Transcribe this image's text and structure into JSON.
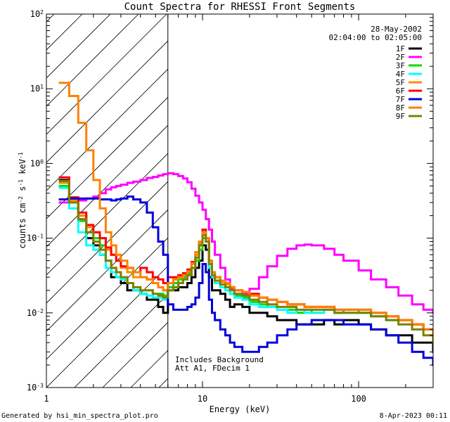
{
  "chart_data": {
    "type": "line",
    "title": "Count Spectra for RHESSI Front Segments",
    "xlabel": "Energy (keV)",
    "ylabel": "counts cm",
    "ylabel_sup1": "-2",
    "ylabel_mid": " s",
    "ylabel_sup2": "-1",
    "ylabel_mid2": " keV",
    "ylabel_sup3": "-1",
    "x_scale": "log",
    "y_scale": "log",
    "xlim": [
      1,
      300
    ],
    "ylim": [
      0.001,
      100
    ],
    "x_ticks": [
      {
        "value": 1,
        "label": "1"
      },
      {
        "value": 10,
        "label": "10"
      },
      {
        "value": 100,
        "label": "100"
      }
    ],
    "y_ticks": [
      {
        "value": 0.001,
        "base": "10",
        "exp": "-3"
      },
      {
        "value": 0.01,
        "base": "10",
        "exp": "-2"
      },
      {
        "value": 0.1,
        "base": "10",
        "exp": "-1"
      },
      {
        "value": 1,
        "base": "10",
        "exp": "0"
      },
      {
        "value": 10,
        "base": "10",
        "exp": "1"
      },
      {
        "value": 100,
        "base": "10",
        "exp": "2"
      }
    ],
    "hatched_region": {
      "x_from": 1,
      "x_to": 6
    },
    "annotations": {
      "date": "28-May-2002",
      "time_range": "02:04:00 to 02:05:00",
      "note1": "Includes Background",
      "note2": "Att A1, FDecim 1"
    },
    "legend_position": "top-right",
    "series": [
      {
        "name": "1F",
        "color": "#000000",
        "x": [
          1.2,
          1.4,
          1.6,
          1.8,
          2,
          2.2,
          2.4,
          2.6,
          2.8,
          3,
          3.3,
          3.6,
          4,
          4.4,
          4.8,
          5.2,
          5.6,
          6,
          6.5,
          7,
          7.5,
          8,
          8.5,
          9,
          9.5,
          10,
          10.5,
          11,
          11.5,
          12,
          13,
          14,
          15,
          16,
          18,
          20,
          23,
          26,
          30,
          35,
          40,
          45,
          50,
          60,
          70,
          80,
          100,
          120,
          150,
          180,
          220,
          260,
          300
        ],
        "y": [
          0.6,
          0.35,
          0.2,
          0.1,
          0.08,
          0.06,
          0.05,
          0.03,
          0.03,
          0.025,
          0.02,
          0.02,
          0.018,
          0.015,
          0.015,
          0.012,
          0.01,
          0.02,
          0.02,
          0.022,
          0.022,
          0.025,
          0.03,
          0.04,
          0.05,
          0.08,
          0.07,
          0.03,
          0.02,
          0.02,
          0.018,
          0.015,
          0.012,
          0.013,
          0.012,
          0.01,
          0.01,
          0.009,
          0.008,
          0.008,
          0.007,
          0.007,
          0.007,
          0.008,
          0.007,
          0.008,
          0.007,
          0.006,
          0.005,
          0.005,
          0.004,
          0.004,
          0.003
        ]
      },
      {
        "name": "2F",
        "color": "#ff00ff",
        "x": [
          1.2,
          1.4,
          1.6,
          1.8,
          2,
          2.2,
          2.4,
          2.6,
          2.8,
          3,
          3.3,
          3.6,
          4,
          4.4,
          4.8,
          5.2,
          5.6,
          6,
          6.5,
          7,
          7.5,
          8,
          8.5,
          9,
          9.5,
          10,
          10.5,
          11,
          11.5,
          12,
          13,
          14,
          15,
          16,
          18,
          20,
          23,
          26,
          30,
          35,
          40,
          45,
          50,
          60,
          70,
          80,
          100,
          120,
          150,
          180,
          220,
          260,
          300
        ],
        "y": [
          0.3,
          0.31,
          0.32,
          0.34,
          0.36,
          0.4,
          0.45,
          0.48,
          0.5,
          0.52,
          0.55,
          0.57,
          0.6,
          0.64,
          0.66,
          0.69,
          0.72,
          0.74,
          0.72,
          0.68,
          0.63,
          0.56,
          0.46,
          0.37,
          0.3,
          0.24,
          0.18,
          0.13,
          0.09,
          0.06,
          0.04,
          0.028,
          0.021,
          0.018,
          0.018,
          0.021,
          0.03,
          0.042,
          0.058,
          0.072,
          0.08,
          0.082,
          0.08,
          0.072,
          0.06,
          0.05,
          0.037,
          0.028,
          0.022,
          0.017,
          0.013,
          0.011,
          0.01
        ]
      },
      {
        "name": "3F",
        "color": "#00dd00",
        "x": [
          1.2,
          1.4,
          1.6,
          1.8,
          2,
          2.2,
          2.4,
          2.6,
          2.8,
          3,
          3.3,
          3.6,
          4,
          4.4,
          4.8,
          5.2,
          5.6,
          6,
          6.5,
          7,
          7.5,
          8,
          8.5,
          9,
          9.5,
          10,
          10.5,
          11,
          11.5,
          12,
          13,
          14,
          15,
          16,
          18,
          20,
          23,
          26,
          30,
          35,
          40,
          45,
          50,
          60,
          70,
          80,
          100,
          120,
          150,
          180,
          220,
          260,
          300
        ],
        "y": [
          0.5,
          0.3,
          0.17,
          0.12,
          0.1,
          0.08,
          0.05,
          0.04,
          0.035,
          0.03,
          0.025,
          0.022,
          0.02,
          0.02,
          0.018,
          0.018,
          0.017,
          0.022,
          0.025,
          0.028,
          0.03,
          0.034,
          0.04,
          0.05,
          0.07,
          0.1,
          0.09,
          0.04,
          0.03,
          0.025,
          0.022,
          0.02,
          0.018,
          0.017,
          0.016,
          0.014,
          0.013,
          0.012,
          0.011,
          0.011,
          0.01,
          0.011,
          0.01,
          0.011,
          0.01,
          0.011,
          0.01,
          0.009,
          0.008,
          0.008,
          0.007,
          0.006,
          0.005
        ]
      },
      {
        "name": "4F",
        "color": "#00ffff",
        "x": [
          1.2,
          1.4,
          1.6,
          1.8,
          2,
          2.2,
          2.4,
          2.6,
          2.8,
          3,
          3.3,
          3.6,
          4,
          4.4,
          4.8,
          5.2,
          5.6,
          6,
          6.5,
          7,
          7.5,
          8,
          8.5,
          9,
          9.5,
          10,
          10.5,
          11,
          11.5,
          12,
          13,
          14,
          15,
          16,
          18,
          20,
          23,
          26,
          30,
          35,
          40,
          45,
          50,
          60,
          70,
          80,
          100,
          120,
          150,
          180,
          220,
          260,
          300
        ],
        "y": [
          0.47,
          0.25,
          0.12,
          0.08,
          0.07,
          0.06,
          0.04,
          0.035,
          0.03,
          0.028,
          0.025,
          0.02,
          0.018,
          0.017,
          0.016,
          0.016,
          0.015,
          0.02,
          0.022,
          0.025,
          0.028,
          0.032,
          0.04,
          0.055,
          0.08,
          0.13,
          0.1,
          0.04,
          0.03,
          0.025,
          0.022,
          0.02,
          0.018,
          0.016,
          0.015,
          0.013,
          0.012,
          0.012,
          0.011,
          0.01,
          0.011,
          0.01,
          0.01,
          0.011,
          0.01,
          0.01,
          0.01,
          0.009,
          0.008,
          0.008,
          0.007,
          0.006,
          0.005
        ]
      },
      {
        "name": "5F",
        "color": "#ff8c00",
        "x": [
          1.2,
          1.4,
          1.6,
          1.8,
          2,
          2.2,
          2.4,
          2.6,
          2.8,
          3,
          3.3,
          3.6,
          4,
          4.4,
          4.8,
          5.2,
          5.6,
          6,
          6.5,
          7,
          7.5,
          8,
          8.5,
          9,
          9.5,
          10,
          10.5,
          11,
          11.5,
          12,
          13,
          14,
          15,
          16,
          18,
          20,
          23,
          26,
          30,
          35,
          40,
          45,
          50,
          60,
          70,
          80,
          100,
          120,
          150,
          180,
          220,
          260,
          300
        ],
        "y": [
          0.55,
          0.32,
          0.2,
          0.14,
          0.12,
          0.1,
          0.07,
          0.06,
          0.05,
          0.04,
          0.035,
          0.03,
          0.03,
          0.028,
          0.025,
          0.022,
          0.02,
          0.025,
          0.028,
          0.03,
          0.032,
          0.036,
          0.045,
          0.06,
          0.085,
          0.12,
          0.1,
          0.05,
          0.035,
          0.03,
          0.026,
          0.024,
          0.022,
          0.02,
          0.019,
          0.017,
          0.016,
          0.015,
          0.014,
          0.013,
          0.013,
          0.012,
          0.012,
          0.012,
          0.011,
          0.011,
          0.011,
          0.01,
          0.009,
          0.008,
          0.007,
          0.006,
          0.005
        ]
      },
      {
        "name": "6F",
        "color": "#ff0000",
        "x": [
          1.2,
          1.4,
          1.6,
          1.8,
          2,
          2.2,
          2.4,
          2.6,
          2.8,
          3,
          3.3,
          3.6,
          4,
          4.4,
          4.8,
          5.2,
          5.6,
          6,
          6.5,
          7,
          7.5,
          8,
          8.5,
          9,
          9.5,
          10,
          10.5,
          11,
          11.5,
          12,
          13,
          14,
          15,
          16,
          18,
          20,
          23,
          26,
          30,
          35,
          40,
          45,
          50,
          60,
          70,
          80,
          100,
          120,
          150,
          180,
          220,
          260,
          300
        ],
        "y": [
          0.65,
          0.35,
          0.22,
          0.15,
          0.12,
          0.1,
          0.075,
          0.06,
          0.05,
          0.042,
          0.04,
          0.035,
          0.04,
          0.035,
          0.03,
          0.028,
          0.025,
          0.03,
          0.03,
          0.032,
          0.034,
          0.038,
          0.048,
          0.065,
          0.09,
          0.13,
          0.1,
          0.05,
          0.035,
          0.03,
          0.027,
          0.025,
          0.022,
          0.02,
          0.019,
          0.018,
          0.016,
          0.015,
          0.014,
          0.013,
          0.013,
          0.012,
          0.012,
          0.012,
          0.011,
          0.011,
          0.011,
          0.01,
          0.009,
          0.008,
          0.007,
          0.006,
          0.005
        ]
      },
      {
        "name": "7F",
        "color": "#0000dd",
        "x": [
          1.2,
          1.4,
          1.6,
          1.8,
          2,
          2.2,
          2.4,
          2.6,
          2.8,
          3,
          3.3,
          3.6,
          4,
          4.4,
          4.8,
          5.2,
          5.6,
          6,
          6.5,
          7,
          7.5,
          8,
          8.5,
          9,
          9.5,
          10,
          10.5,
          11,
          11.5,
          12,
          13,
          14,
          15,
          16,
          18,
          20,
          23,
          26,
          30,
          35,
          40,
          45,
          50,
          60,
          70,
          80,
          100,
          120,
          150,
          180,
          220,
          260,
          300
        ],
        "y": [
          0.33,
          0.34,
          0.34,
          0.34,
          0.34,
          0.33,
          0.33,
          0.32,
          0.33,
          0.34,
          0.36,
          0.33,
          0.3,
          0.22,
          0.14,
          0.09,
          0.06,
          0.013,
          0.011,
          0.011,
          0.011,
          0.012,
          0.013,
          0.016,
          0.025,
          0.045,
          0.035,
          0.015,
          0.01,
          0.008,
          0.006,
          0.005,
          0.004,
          0.0035,
          0.003,
          0.003,
          0.0035,
          0.004,
          0.005,
          0.006,
          0.007,
          0.007,
          0.008,
          0.008,
          0.008,
          0.007,
          0.007,
          0.006,
          0.005,
          0.004,
          0.003,
          0.0025,
          0.002
        ]
      },
      {
        "name": "8F",
        "color": "#ff8000",
        "x": [
          1.2,
          1.4,
          1.6,
          1.8,
          2,
          2.2,
          2.4,
          2.6,
          2.8,
          3,
          3.3,
          3.6,
          4,
          4.4,
          4.8,
          5.2,
          5.6,
          6,
          6.5,
          7,
          7.5,
          8,
          8.5,
          9,
          9.5,
          10,
          10.5,
          11,
          11.5,
          12,
          13,
          14,
          15,
          16,
          18,
          20,
          23,
          26,
          30,
          35,
          40,
          45,
          50,
          60,
          70,
          80,
          100,
          120,
          150,
          180,
          220,
          260,
          300
        ],
        "y": [
          12,
          8,
          3.5,
          1.5,
          0.6,
          0.25,
          0.12,
          0.08,
          0.06,
          0.05,
          0.04,
          0.035,
          0.03,
          0.028,
          0.025,
          0.022,
          0.02,
          0.025,
          0.028,
          0.03,
          0.032,
          0.036,
          0.046,
          0.065,
          0.09,
          0.12,
          0.1,
          0.05,
          0.035,
          0.03,
          0.027,
          0.025,
          0.022,
          0.02,
          0.019,
          0.017,
          0.016,
          0.015,
          0.014,
          0.013,
          0.013,
          0.012,
          0.012,
          0.012,
          0.011,
          0.011,
          0.011,
          0.01,
          0.009,
          0.008,
          0.007,
          0.006,
          0.005
        ]
      },
      {
        "name": "9F",
        "color": "#808000",
        "x": [
          1.2,
          1.4,
          1.6,
          1.8,
          2,
          2.2,
          2.4,
          2.6,
          2.8,
          3,
          3.3,
          3.6,
          4,
          4.4,
          4.8,
          5.2,
          5.6,
          6,
          6.5,
          7,
          7.5,
          8,
          8.5,
          9,
          9.5,
          10,
          10.5,
          11,
          11.5,
          12,
          13,
          14,
          15,
          16,
          18,
          20,
          23,
          26,
          30,
          35,
          40,
          45,
          50,
          60,
          70,
          80,
          100,
          120,
          150,
          180,
          220,
          260,
          300
        ],
        "y": [
          0.58,
          0.3,
          0.18,
          0.12,
          0.09,
          0.07,
          0.05,
          0.04,
          0.035,
          0.03,
          0.025,
          0.022,
          0.02,
          0.02,
          0.018,
          0.017,
          0.016,
          0.02,
          0.022,
          0.025,
          0.028,
          0.032,
          0.04,
          0.055,
          0.08,
          0.11,
          0.09,
          0.045,
          0.032,
          0.027,
          0.024,
          0.022,
          0.02,
          0.018,
          0.017,
          0.015,
          0.014,
          0.013,
          0.012,
          0.012,
          0.011,
          0.011,
          0.011,
          0.011,
          0.01,
          0.01,
          0.01,
          0.009,
          0.008,
          0.007,
          0.006,
          0.005,
          0.004
        ]
      }
    ]
  },
  "footer": {
    "generator": "Generated by hsi_min_spectra_plot.pro",
    "timestamp": "8-Apr-2023 00:11"
  }
}
